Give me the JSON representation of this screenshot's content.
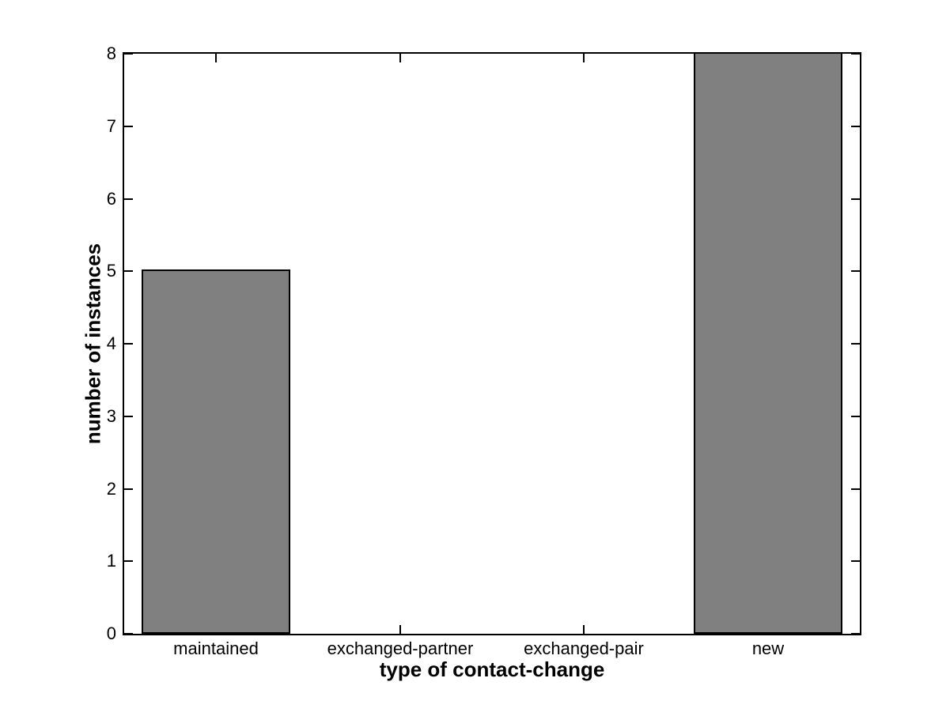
{
  "chart_data": {
    "type": "bar",
    "categories": [
      "maintained",
      "exchanged-partner",
      "exchanged-pair",
      "new"
    ],
    "values": [
      5,
      0,
      0,
      8
    ],
    "xlabel": "type of contact-change",
    "ylabel": "number of instances",
    "ylim": [
      0,
      8
    ],
    "yticks": [
      0,
      1,
      2,
      3,
      4,
      5,
      6,
      7,
      8
    ],
    "xlim": [
      0.5,
      4.5
    ],
    "bar_width_fraction": 0.8,
    "grid": false,
    "legend_position": "none",
    "bar_fill_color": "#808080",
    "bar_edge_color": "#000000",
    "axis_color": "#000000",
    "background_color": "#ffffff"
  }
}
